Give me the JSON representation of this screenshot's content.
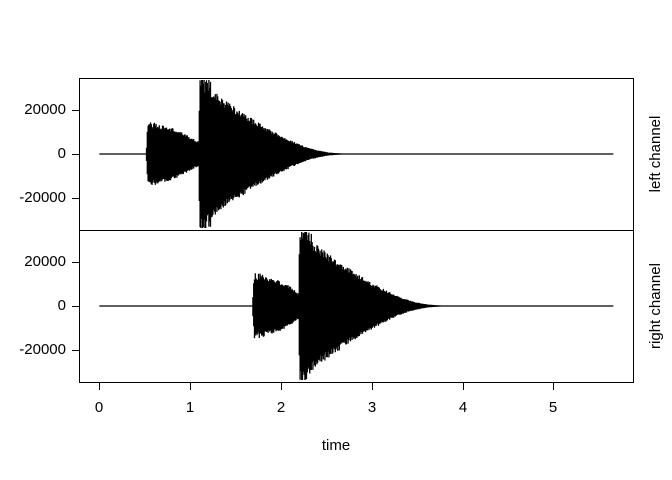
{
  "chart_data": {
    "type": "line",
    "subtype": "stereo-audio-waveform",
    "title": "",
    "xlabel": "time",
    "ylabel": "",
    "x_ticks": [
      0,
      1,
      2,
      3,
      4,
      5
    ],
    "y_ticks": [
      20000,
      0,
      -20000
    ],
    "xlim": [
      -0.213,
      5.876
    ],
    "ylim_per_panel": [
      -33800,
      33800
    ],
    "duration": 5.66,
    "grid": false,
    "line_color": "#000000",
    "background_color": "#ffffff",
    "panels": [
      {
        "label": "left channel",
        "envelope": [
          [
            0,
            0
          ],
          [
            0.515,
            0
          ],
          [
            0.535,
            13200
          ],
          [
            0.62,
            13000
          ],
          [
            0.8,
            11400
          ],
          [
            0.95,
            8600
          ],
          [
            1.07,
            5800
          ],
          [
            1.095,
            5700
          ],
          [
            1.105,
            31500
          ],
          [
            1.125,
            32800
          ],
          [
            1.25,
            27500
          ],
          [
            1.4,
            23000
          ],
          [
            1.55,
            18800
          ],
          [
            1.7,
            15000
          ],
          [
            1.85,
            11300
          ],
          [
            2.0,
            8000
          ],
          [
            2.15,
            5200
          ],
          [
            2.28,
            3000
          ],
          [
            2.4,
            1600
          ],
          [
            2.52,
            700
          ],
          [
            2.65,
            280
          ],
          [
            2.8,
            90
          ],
          [
            2.95,
            0
          ],
          [
            5.66,
            0
          ]
        ]
      },
      {
        "label": "right channel",
        "envelope": [
          [
            0,
            0
          ],
          [
            1.685,
            0
          ],
          [
            1.705,
            13200
          ],
          [
            1.79,
            13000
          ],
          [
            1.96,
            11400
          ],
          [
            2.1,
            8600
          ],
          [
            2.18,
            5800
          ],
          [
            2.195,
            5700
          ],
          [
            2.205,
            31500
          ],
          [
            2.225,
            32800
          ],
          [
            2.36,
            27500
          ],
          [
            2.51,
            23000
          ],
          [
            2.66,
            18800
          ],
          [
            2.8,
            15000
          ],
          [
            2.95,
            11300
          ],
          [
            3.1,
            8000
          ],
          [
            3.24,
            5200
          ],
          [
            3.37,
            3000
          ],
          [
            3.49,
            1600
          ],
          [
            3.61,
            700
          ],
          [
            3.74,
            280
          ],
          [
            3.88,
            90
          ],
          [
            4.02,
            0
          ],
          [
            5.66,
            0
          ]
        ]
      }
    ]
  }
}
